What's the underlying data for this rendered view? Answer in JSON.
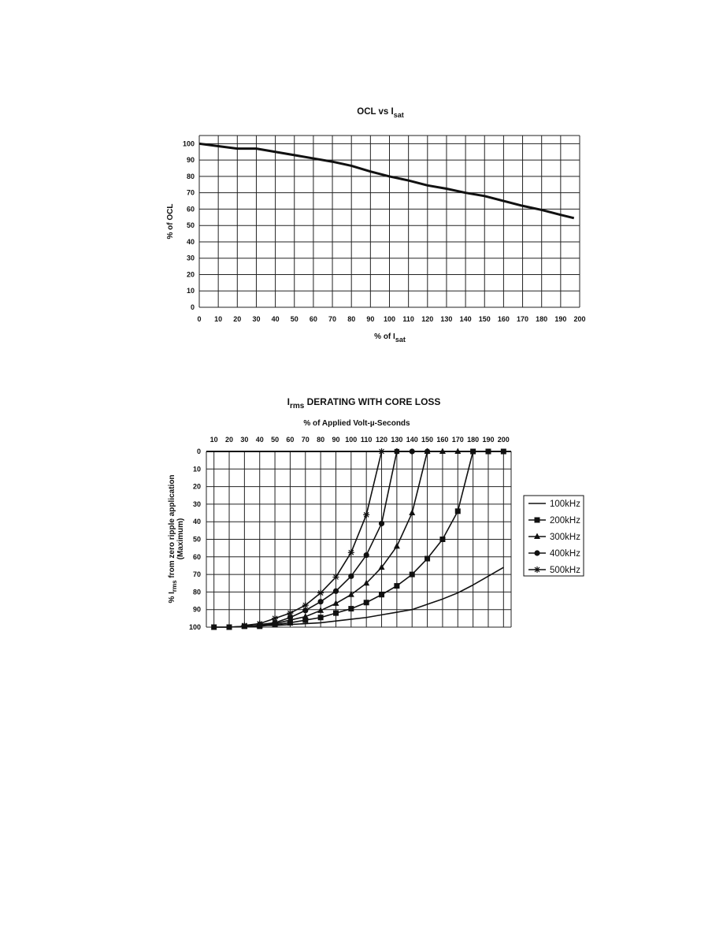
{
  "chart_data": [
    {
      "type": "line",
      "title": {
        "main": "OCL vs I",
        "sub": "sat"
      },
      "xlabel": {
        "main": "% of I",
        "sub": "sat"
      },
      "ylabel": "% of OCL",
      "xlim": [
        0,
        200
      ],
      "ylim": [
        0,
        105
      ],
      "x_ticks": [
        0,
        10,
        20,
        30,
        40,
        50,
        60,
        70,
        80,
        90,
        100,
        110,
        120,
        130,
        140,
        150,
        160,
        170,
        180,
        190,
        200
      ],
      "y_ticks": [
        0,
        10,
        20,
        30,
        40,
        50,
        60,
        70,
        80,
        90,
        100
      ],
      "grid": true,
      "series": [
        {
          "x": [
            0,
            10,
            20,
            30,
            40,
            50,
            60,
            70,
            80,
            90,
            100,
            110,
            120,
            130,
            140,
            150,
            160,
            170,
            180,
            190,
            197
          ],
          "values": [
            100,
            98.5,
            97,
            97,
            95,
            93,
            91,
            89,
            86.5,
            83,
            80,
            77.5,
            74.5,
            72.5,
            70,
            68,
            65,
            62,
            59.5,
            56.5,
            54.5
          ]
        }
      ]
    },
    {
      "type": "line",
      "title": {
        "main": "I",
        "sub": "rms",
        "rest": " DERATING WITH CORE LOSS"
      },
      "xlabel": "% of Applied Volt-µ-Seconds",
      "ylabel": {
        "line1": "% I",
        "sub": "rms",
        "rest": " from zero ripple application",
        "line2": "(Maximum)"
      },
      "xlim": [
        5,
        205
      ],
      "ylim": [
        0,
        100
      ],
      "y_inverted": true,
      "x_ticks": [
        10,
        20,
        30,
        40,
        50,
        60,
        70,
        80,
        90,
        100,
        110,
        120,
        130,
        140,
        150,
        160,
        170,
        180,
        190,
        200
      ],
      "y_ticks": [
        0,
        10,
        20,
        30,
        40,
        50,
        60,
        70,
        80,
        90,
        100
      ],
      "grid": true,
      "legend": "right",
      "series": [
        {
          "name": "100kHz",
          "marker": "none",
          "x": [
            10,
            20,
            30,
            40,
            50,
            60,
            70,
            80,
            90,
            100,
            110,
            120,
            130,
            140,
            150,
            160,
            170,
            180,
            190,
            200
          ],
          "values": [
            100,
            100,
            99.5,
            99,
            99,
            98.5,
            98,
            97.5,
            96.5,
            95.5,
            94.5,
            93,
            91.5,
            90,
            87,
            84,
            80.5,
            76,
            71,
            66
          ]
        },
        {
          "name": "200kHz",
          "marker": "square",
          "x": [
            10,
            20,
            30,
            40,
            50,
            60,
            70,
            80,
            90,
            100,
            110,
            120,
            130,
            140,
            150,
            160,
            170,
            180,
            190,
            200
          ],
          "values": [
            100,
            100,
            99.5,
            99.5,
            98.5,
            97.5,
            96,
            94.5,
            92,
            89.5,
            86,
            81.5,
            76.5,
            70,
            61,
            50,
            34,
            0,
            0,
            0
          ]
        },
        {
          "name": "300kHz",
          "marker": "triangle",
          "x": [
            30,
            40,
            50,
            60,
            70,
            80,
            90,
            100,
            110,
            120,
            130,
            140,
            150,
            160,
            170
          ],
          "values": [
            99.5,
            99,
            98,
            96,
            94,
            90.5,
            86.5,
            81.5,
            75,
            66,
            54,
            35,
            0,
            0,
            0
          ]
        },
        {
          "name": "400kHz",
          "marker": "circle",
          "x": [
            40,
            50,
            60,
            70,
            80,
            90,
            100,
            110,
            120,
            130,
            140,
            150
          ],
          "values": [
            98.5,
            97.5,
            94.5,
            90.5,
            85.5,
            79.5,
            71,
            59,
            41,
            0,
            0,
            0
          ]
        },
        {
          "name": "500kHz",
          "marker": "star",
          "x": [
            30,
            40,
            50,
            60,
            70,
            80,
            90,
            100,
            110,
            120,
            130
          ],
          "values": [
            99,
            98,
            95,
            92,
            87.5,
            80.5,
            71.5,
            57.5,
            36,
            0,
            0
          ]
        }
      ]
    }
  ]
}
